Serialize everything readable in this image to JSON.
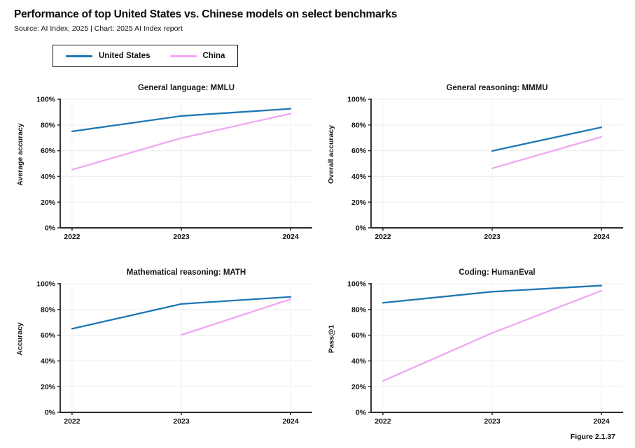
{
  "header": {
    "title": "Performance of top United States vs. Chinese models on select benchmarks",
    "subtitle": "Source: AI Index, 2025 | Chart: 2025 AI Index report"
  },
  "legend": {
    "items": [
      {
        "label": "United States",
        "color": "#1f77b4"
      },
      {
        "label": "China",
        "color": "#f0a7f2"
      }
    ]
  },
  "colors": {
    "us": "#1f77b4",
    "china": "#f0a7f2",
    "axis": "#2b2b2b",
    "grid_h": "#efefef",
    "grid_v": "#f4f4f4"
  },
  "chart_data": [
    {
      "type": "line",
      "title": "General language: MMLU",
      "ylabel": "Average accuracy",
      "x": [
        2022,
        2023,
        2024
      ],
      "x_tick_labels": [
        "2022",
        "2023",
        "2024"
      ],
      "y_ticks": [
        "0%",
        "20%",
        "40%",
        "60%",
        "80%",
        "100%"
      ],
      "ylim": [
        0,
        100
      ],
      "series": [
        {
          "name": "United States",
          "color_key": "us",
          "values": [
            75.0,
            87.0,
            92.6
          ]
        },
        {
          "name": "China",
          "color_key": "china",
          "values": [
            45.2,
            69.8,
            88.8
          ]
        }
      ]
    },
    {
      "type": "line",
      "title": "General reasoning: MMMU",
      "ylabel": "Overall accuracy",
      "x": [
        2022,
        2023,
        2024
      ],
      "x_tick_labels": [
        "2022",
        "2023",
        "2024"
      ],
      "y_ticks": [
        "0%",
        "20%",
        "40%",
        "60%",
        "80%",
        "100%"
      ],
      "ylim": [
        0,
        100
      ],
      "series": [
        {
          "name": "United States",
          "color_key": "us",
          "values": [
            null,
            59.8,
            78.2
          ]
        },
        {
          "name": "China",
          "color_key": "china",
          "values": [
            null,
            46.3,
            70.7
          ]
        }
      ]
    },
    {
      "type": "line",
      "title": "Mathematical reasoning: MATH",
      "ylabel": "Accuracy",
      "x": [
        2022,
        2023,
        2024
      ],
      "x_tick_labels": [
        "2022",
        "2023",
        "2024"
      ],
      "y_ticks": [
        "0%",
        "20%",
        "40%",
        "60%",
        "80%",
        "100%"
      ],
      "ylim": [
        0,
        100
      ],
      "series": [
        {
          "name": "United States",
          "color_key": "us",
          "values": [
            65.0,
            84.3,
            89.8
          ]
        },
        {
          "name": "China",
          "color_key": "china",
          "values": [
            null,
            60.2,
            88.0
          ]
        }
      ]
    },
    {
      "type": "line",
      "title": "Coding: HumanEval",
      "ylabel": "Pass@1",
      "x": [
        2022,
        2023,
        2024
      ],
      "x_tick_labels": [
        "2022",
        "2023",
        "2024"
      ],
      "y_ticks": [
        "0%",
        "20%",
        "40%",
        "60%",
        "80%",
        "100%"
      ],
      "ylim": [
        0,
        100
      ],
      "series": [
        {
          "name": "United States",
          "color_key": "us",
          "values": [
            85.2,
            93.8,
            98.6
          ]
        },
        {
          "name": "China",
          "color_key": "china",
          "values": [
            24.4,
            61.7,
            94.6
          ]
        }
      ]
    }
  ],
  "footer": {
    "figure_label": "Figure 2.1.37"
  }
}
